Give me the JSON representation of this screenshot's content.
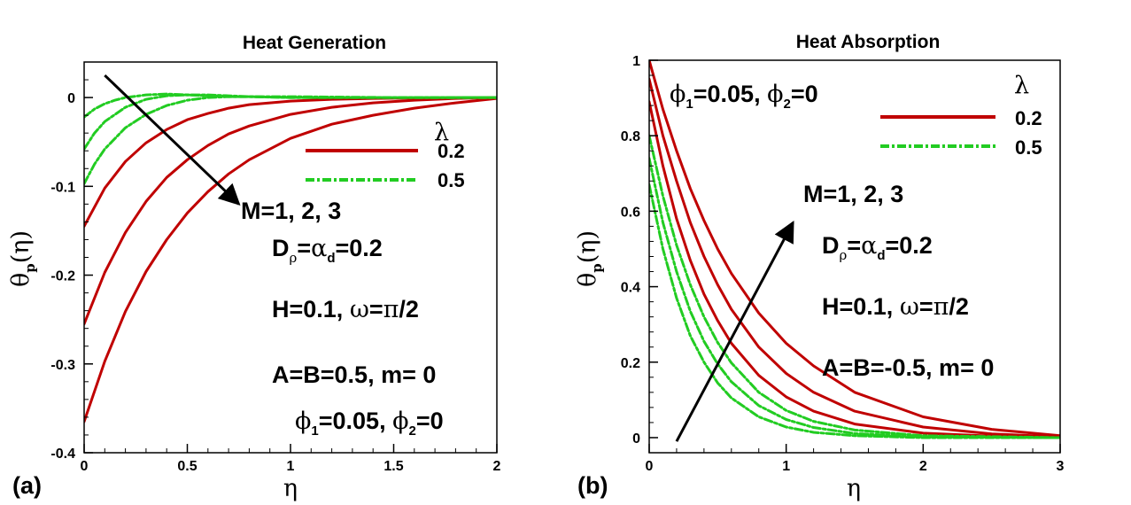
{
  "chart_data": [
    {
      "type": "line",
      "panel_label": "(a)",
      "title": "Heat Generation",
      "xlabel": "η",
      "ylabel": {
        "base": "θ",
        "sub": "p",
        "rest": "(η)"
      },
      "xlim": [
        0,
        2
      ],
      "ylim": [
        -0.4,
        0.04
      ],
      "xticks": [
        0,
        0.5,
        1,
        1.5,
        2
      ],
      "xtick_labels": [
        "0",
        "0.5",
        "1",
        "1.5",
        "2"
      ],
      "yticks": [
        -0.4,
        -0.3,
        -0.2,
        -0.1,
        0
      ],
      "ytick_labels": [
        "-0.4",
        "-0.3",
        "-0.2",
        "-0.1",
        "0"
      ],
      "legend": {
        "title": "λ",
        "entries": [
          {
            "label": "0.2",
            "color": "#c00000",
            "style": "solid"
          },
          {
            "label": "0.5",
            "color": "#22cc22",
            "style": "dashdot"
          }
        ]
      },
      "series": [
        {
          "name": "λ=0.2, M=1",
          "lambda": 0.2,
          "M": 1,
          "color": "#c00000",
          "style": "solid",
          "x": [
            0,
            0.1,
            0.2,
            0.3,
            0.4,
            0.5,
            0.6,
            0.7,
            0.8,
            1.0,
            1.2,
            1.4,
            1.6,
            1.8,
            2.0
          ],
          "y": [
            -0.145,
            -0.102,
            -0.072,
            -0.051,
            -0.036,
            -0.025,
            -0.018,
            -0.012,
            -0.008,
            -0.004,
            -0.002,
            -0.001,
            -0.0005,
            -0.0002,
            0
          ]
        },
        {
          "name": "λ=0.2, M=2",
          "lambda": 0.2,
          "M": 2,
          "color": "#c00000",
          "style": "solid",
          "x": [
            0,
            0.1,
            0.2,
            0.3,
            0.4,
            0.5,
            0.6,
            0.7,
            0.8,
            1.0,
            1.2,
            1.4,
            1.6,
            1.8,
            2.0
          ],
          "y": [
            -0.255,
            -0.197,
            -0.152,
            -0.117,
            -0.09,
            -0.07,
            -0.054,
            -0.041,
            -0.032,
            -0.019,
            -0.011,
            -0.006,
            -0.003,
            -0.001,
            0
          ]
        },
        {
          "name": "λ=0.2, M=3",
          "lambda": 0.2,
          "M": 3,
          "color": "#c00000",
          "style": "solid",
          "x": [
            0,
            0.1,
            0.2,
            0.3,
            0.4,
            0.5,
            0.6,
            0.7,
            0.8,
            1.0,
            1.2,
            1.4,
            1.6,
            1.8,
            2.0
          ],
          "y": [
            -0.365,
            -0.297,
            -0.241,
            -0.196,
            -0.16,
            -0.13,
            -0.106,
            -0.086,
            -0.07,
            -0.046,
            -0.03,
            -0.02,
            -0.012,
            -0.006,
            -0.001
          ]
        },
        {
          "name": "λ=0.5, M=1",
          "lambda": 0.5,
          "M": 1,
          "color": "#22cc22",
          "style": "dashdot",
          "x": [
            0,
            0.05,
            0.1,
            0.15,
            0.2,
            0.3,
            0.4,
            0.5,
            0.6,
            0.7,
            0.8,
            1.0,
            1.5,
            2.0
          ],
          "y": [
            -0.022,
            -0.013,
            -0.007,
            -0.003,
            0.0,
            0.003,
            0.004,
            0.003,
            0.002,
            0.001,
            0.001,
            0.0,
            0.0,
            0.0
          ]
        },
        {
          "name": "λ=0.5, M=2",
          "lambda": 0.5,
          "M": 2,
          "color": "#22cc22",
          "style": "dashdot",
          "x": [
            0,
            0.05,
            0.1,
            0.2,
            0.3,
            0.4,
            0.5,
            0.6,
            0.7,
            0.8,
            1.0,
            1.5,
            2.0
          ],
          "y": [
            -0.058,
            -0.04,
            -0.027,
            -0.011,
            -0.002,
            0.002,
            0.003,
            0.003,
            0.002,
            0.001,
            0.0,
            0.0,
            0.0
          ]
        },
        {
          "name": "λ=0.5, M=3",
          "lambda": 0.5,
          "M": 3,
          "color": "#22cc22",
          "style": "dashdot",
          "x": [
            0,
            0.05,
            0.1,
            0.2,
            0.3,
            0.4,
            0.5,
            0.6,
            0.7,
            0.8,
            1.0,
            1.5,
            2.0
          ],
          "y": [
            -0.097,
            -0.075,
            -0.058,
            -0.034,
            -0.019,
            -0.009,
            -0.003,
            0.0,
            0.001,
            0.001,
            0.001,
            0.0,
            0.0
          ]
        }
      ],
      "arrow": {
        "from": [
          0.1,
          0.025
        ],
        "to": [
          0.75,
          -0.12
        ]
      },
      "annotations": {
        "arrow_label": "M=1, 2, 3",
        "params_line1_D": "D",
        "params_line1_rho": "ρ",
        "params_line1_eq": "=",
        "params_line1_alpha": "α",
        "params_line1_d": "d",
        "params_line1_val": "=0.2",
        "params_line2_a": "H=0.1, ",
        "params_line2_omega": "ω",
        "params_line2_eq": "=",
        "params_line2_pi": "π",
        "params_line2_b": "/2",
        "params_line3": "A=B=0.5, m= 0",
        "phi_line_phi": "ϕ",
        "phi_line_1": "1",
        "phi_line_a": "=0.05, ",
        "phi_line_2": "2",
        "phi_line_b": "=0"
      }
    },
    {
      "type": "line",
      "panel_label": "(b)",
      "title": "Heat Absorption",
      "xlabel": "η",
      "ylabel": {
        "base": "θ",
        "sub": "p",
        "rest": "(η)"
      },
      "xlim": [
        0,
        3
      ],
      "ylim": [
        -0.04,
        1.0
      ],
      "xticks": [
        0,
        1,
        2,
        3
      ],
      "xtick_labels": [
        "0",
        "1",
        "2",
        "3"
      ],
      "yticks": [
        0,
        0.2,
        0.4,
        0.6,
        0.8,
        1
      ],
      "ytick_labels": [
        "0",
        "0.2",
        "0.4",
        "0.6",
        "0.8",
        "1"
      ],
      "legend": {
        "title": "λ",
        "entries": [
          {
            "label": "0.2",
            "color": "#c00000",
            "style": "solid"
          },
          {
            "label": "0.5",
            "color": "#22cc22",
            "style": "dashdot"
          }
        ]
      },
      "series": [
        {
          "name": "λ=0.2, M=1",
          "lambda": 0.2,
          "M": 1,
          "color": "#c00000",
          "style": "solid",
          "x": [
            0,
            0.1,
            0.2,
            0.3,
            0.4,
            0.5,
            0.6,
            0.8,
            1.0,
            1.2,
            1.5,
            2.0,
            2.5,
            3.0
          ],
          "y": [
            0.89,
            0.72,
            0.58,
            0.47,
            0.38,
            0.31,
            0.25,
            0.165,
            0.108,
            0.07,
            0.036,
            0.012,
            0.004,
            0.0
          ]
        },
        {
          "name": "λ=0.2, M=2",
          "lambda": 0.2,
          "M": 2,
          "color": "#c00000",
          "style": "solid",
          "x": [
            0,
            0.1,
            0.2,
            0.3,
            0.4,
            0.5,
            0.6,
            0.8,
            1.0,
            1.2,
            1.5,
            2.0,
            2.5,
            3.0
          ],
          "y": [
            0.95,
            0.8,
            0.68,
            0.57,
            0.48,
            0.405,
            0.34,
            0.24,
            0.17,
            0.12,
            0.07,
            0.028,
            0.01,
            0.002
          ]
        },
        {
          "name": "λ=0.2, M=3",
          "lambda": 0.2,
          "M": 3,
          "color": "#c00000",
          "style": "solid",
          "x": [
            0,
            0.1,
            0.2,
            0.3,
            0.4,
            0.5,
            0.6,
            0.8,
            1.0,
            1.2,
            1.5,
            2.0,
            2.5,
            3.0
          ],
          "y": [
            1.0,
            0.87,
            0.76,
            0.66,
            0.575,
            0.5,
            0.435,
            0.33,
            0.25,
            0.19,
            0.12,
            0.055,
            0.022,
            0.005
          ]
        },
        {
          "name": "λ=0.5, M=1",
          "lambda": 0.5,
          "M": 1,
          "color": "#22cc22",
          "style": "dashdot",
          "x": [
            0,
            0.1,
            0.2,
            0.3,
            0.4,
            0.5,
            0.6,
            0.8,
            1.0,
            1.2,
            1.5,
            2.0,
            3.0
          ],
          "y": [
            0.67,
            0.5,
            0.37,
            0.27,
            0.2,
            0.145,
            0.105,
            0.055,
            0.028,
            0.014,
            0.005,
            0.0,
            0.0
          ]
        },
        {
          "name": "λ=0.5, M=2",
          "lambda": 0.5,
          "M": 2,
          "color": "#22cc22",
          "style": "dashdot",
          "x": [
            0,
            0.1,
            0.2,
            0.3,
            0.4,
            0.5,
            0.6,
            0.8,
            1.0,
            1.2,
            1.5,
            2.0,
            3.0
          ],
          "y": [
            0.74,
            0.57,
            0.44,
            0.335,
            0.255,
            0.195,
            0.148,
            0.085,
            0.048,
            0.027,
            0.011,
            0.002,
            0.0
          ]
        },
        {
          "name": "λ=0.5, M=3",
          "lambda": 0.5,
          "M": 3,
          "color": "#22cc22",
          "style": "dashdot",
          "x": [
            0,
            0.1,
            0.2,
            0.3,
            0.4,
            0.5,
            0.6,
            0.8,
            1.0,
            1.2,
            1.5,
            2.0,
            3.0
          ],
          "y": [
            0.8,
            0.64,
            0.51,
            0.405,
            0.32,
            0.252,
            0.198,
            0.12,
            0.072,
            0.043,
            0.02,
            0.005,
            0.0
          ]
        }
      ],
      "arrow": {
        "from": [
          0.2,
          -0.01
        ],
        "to": [
          1.05,
          0.57
        ]
      },
      "annotations": {
        "arrow_label": "M=1, 2, 3",
        "params_line1_D": "D",
        "params_line1_rho": "ρ",
        "params_line1_eq": "=",
        "params_line1_alpha": "α",
        "params_line1_d": "d",
        "params_line1_val": "=0.2",
        "params_line2_a": "H=0.1, ",
        "params_line2_omega": "ω",
        "params_line2_eq": "=",
        "params_line2_pi": "π",
        "params_line2_b": "/2",
        "params_line3": "A=B=-0.5, m= 0",
        "phi_line_phi": "ϕ",
        "phi_line_1": "1",
        "phi_line_a": "=0.05, ",
        "phi_line_2": "2",
        "phi_line_b": "=0"
      }
    }
  ]
}
